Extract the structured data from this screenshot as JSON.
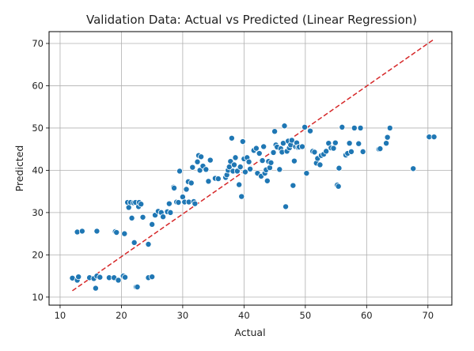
{
  "chart_data": {
    "type": "scatter",
    "title": "Validation Data: Actual vs Predicted (Linear Regression)",
    "xlabel": "Actual",
    "ylabel": "Predicted",
    "xlim": [
      8.2,
      73.9
    ],
    "ylim": [
      8.1,
      72.8
    ],
    "xticks": [
      10,
      20,
      30,
      40,
      50,
      60,
      70
    ],
    "yticks": [
      10,
      20,
      30,
      40,
      50,
      60,
      70
    ],
    "grid": true,
    "point_color": "#1f77b4",
    "point_edge_color": "#ffffff",
    "reference_line": {
      "style": "dashed",
      "color": "#d62728",
      "x": [
        12.0,
        71.0
      ],
      "y": [
        11.5,
        71.0
      ]
    },
    "points": [
      [
        12.0,
        14.5
      ],
      [
        12.8,
        14.0
      ],
      [
        13.0,
        14.8
      ],
      [
        14.8,
        14.6
      ],
      [
        15.5,
        14.4
      ],
      [
        15.8,
        12.1
      ],
      [
        16.0,
        15.0
      ],
      [
        16.5,
        14.7
      ],
      [
        18.0,
        14.6
      ],
      [
        18.8,
        14.6
      ],
      [
        19.5,
        14.0
      ],
      [
        20.3,
        15.0
      ],
      [
        20.6,
        14.7
      ],
      [
        22.4,
        12.4
      ],
      [
        22.6,
        12.4
      ],
      [
        24.4,
        14.6
      ],
      [
        25.0,
        14.8
      ],
      [
        12.8,
        25.4
      ],
      [
        13.6,
        25.6
      ],
      [
        16.0,
        25.6
      ],
      [
        19.0,
        25.5
      ],
      [
        19.2,
        25.3
      ],
      [
        20.5,
        25.0
      ],
      [
        21.0,
        32.4
      ],
      [
        21.5,
        32.4
      ],
      [
        21.2,
        31.2
      ],
      [
        21.7,
        28.7
      ],
      [
        22.0,
        32.3
      ],
      [
        22.1,
        22.9
      ],
      [
        22.3,
        32.4
      ],
      [
        22.8,
        31.4
      ],
      [
        22.9,
        32.4
      ],
      [
        23.2,
        32.0
      ],
      [
        23.5,
        28.9
      ],
      [
        24.4,
        22.5
      ],
      [
        25.0,
        27.2
      ],
      [
        25.5,
        29.4
      ],
      [
        26.0,
        30.3
      ],
      [
        26.5,
        30.0
      ],
      [
        26.8,
        29.0
      ],
      [
        27.5,
        30.2
      ],
      [
        27.8,
        32.1
      ],
      [
        28.0,
        30.0
      ],
      [
        28.5,
        36.0
      ],
      [
        28.6,
        35.8
      ],
      [
        29.0,
        32.5
      ],
      [
        29.3,
        32.4
      ],
      [
        29.5,
        39.8
      ],
      [
        30.0,
        33.7
      ],
      [
        30.3,
        32.5
      ],
      [
        30.6,
        35.5
      ],
      [
        30.9,
        37.3
      ],
      [
        31.0,
        32.5
      ],
      [
        31.4,
        37.0
      ],
      [
        31.6,
        40.7
      ],
      [
        31.8,
        32.6
      ],
      [
        32.0,
        32.1
      ],
      [
        32.4,
        42.0
      ],
      [
        32.6,
        43.5
      ],
      [
        32.8,
        40.0
      ],
      [
        33.0,
        43.2
      ],
      [
        33.3,
        41.0
      ],
      [
        33.8,
        40.2
      ],
      [
        34.2,
        37.4
      ],
      [
        34.5,
        42.4
      ],
      [
        35.3,
        38.1
      ],
      [
        35.8,
        38.0
      ],
      [
        37.0,
        38.3
      ],
      [
        37.2,
        38.9
      ],
      [
        37.4,
        40.0
      ],
      [
        37.6,
        40.8
      ],
      [
        37.8,
        42.1
      ],
      [
        38.0,
        47.6
      ],
      [
        38.2,
        39.8
      ],
      [
        38.4,
        41.3
      ],
      [
        38.6,
        43.0
      ],
      [
        38.9,
        39.8
      ],
      [
        39.2,
        36.6
      ],
      [
        39.4,
        40.8
      ],
      [
        39.6,
        33.8
      ],
      [
        39.8,
        46.8
      ],
      [
        40.0,
        42.7
      ],
      [
        40.2,
        39.6
      ],
      [
        40.5,
        43.0
      ],
      [
        40.8,
        42.0
      ],
      [
        41.0,
        40.3
      ],
      [
        41.6,
        44.7
      ],
      [
        42.0,
        45.2
      ],
      [
        42.2,
        39.3
      ],
      [
        42.5,
        44.0
      ],
      [
        42.8,
        38.6
      ],
      [
        43.0,
        42.3
      ],
      [
        43.2,
        45.6
      ],
      [
        43.4,
        39.3
      ],
      [
        43.6,
        40.1
      ],
      [
        43.8,
        37.5
      ],
      [
        44.0,
        42.1
      ],
      [
        44.2,
        40.6
      ],
      [
        44.4,
        41.8
      ],
      [
        44.8,
        44.2
      ],
      [
        45.0,
        49.2
      ],
      [
        45.2,
        46.0
      ],
      [
        45.4,
        45.5
      ],
      [
        45.8,
        40.2
      ],
      [
        46.0,
        45.1
      ],
      [
        46.2,
        44.3
      ],
      [
        46.4,
        46.4
      ],
      [
        46.6,
        50.5
      ],
      [
        46.8,
        31.4
      ],
      [
        47.0,
        44.5
      ],
      [
        47.2,
        46.9
      ],
      [
        47.4,
        45.3
      ],
      [
        47.6,
        46.0
      ],
      [
        47.8,
        47.1
      ],
      [
        48.0,
        36.4
      ],
      [
        48.2,
        42.2
      ],
      [
        48.4,
        45.6
      ],
      [
        48.6,
        46.5
      ],
      [
        48.8,
        45.4
      ],
      [
        49.0,
        45.5
      ],
      [
        49.5,
        45.6
      ],
      [
        49.9,
        50.2
      ],
      [
        50.2,
        39.3
      ],
      [
        50.8,
        49.3
      ],
      [
        51.2,
        44.5
      ],
      [
        51.5,
        44.3
      ],
      [
        51.8,
        41.7
      ],
      [
        52.0,
        42.8
      ],
      [
        52.4,
        41.3
      ],
      [
        52.6,
        43.5
      ],
      [
        53.0,
        43.8
      ],
      [
        53.4,
        44.5
      ],
      [
        53.8,
        46.4
      ],
      [
        54.2,
        45.3
      ],
      [
        54.6,
        45.2
      ],
      [
        54.9,
        46.5
      ],
      [
        55.2,
        36.5
      ],
      [
        55.4,
        36.2
      ],
      [
        55.5,
        40.5
      ],
      [
        56.0,
        50.2
      ],
      [
        56.6,
        43.6
      ],
      [
        56.9,
        44.0
      ],
      [
        57.2,
        46.4
      ],
      [
        57.5,
        44.4
      ],
      [
        58.0,
        50.0
      ],
      [
        58.7,
        46.3
      ],
      [
        59.0,
        50.0
      ],
      [
        59.4,
        44.4
      ],
      [
        62.0,
        45.0
      ],
      [
        62.2,
        45.1
      ],
      [
        63.2,
        46.4
      ],
      [
        63.4,
        47.8
      ],
      [
        63.8,
        50.0
      ],
      [
        67.6,
        40.4
      ],
      [
        70.2,
        47.9
      ],
      [
        71.0,
        47.9
      ]
    ]
  }
}
